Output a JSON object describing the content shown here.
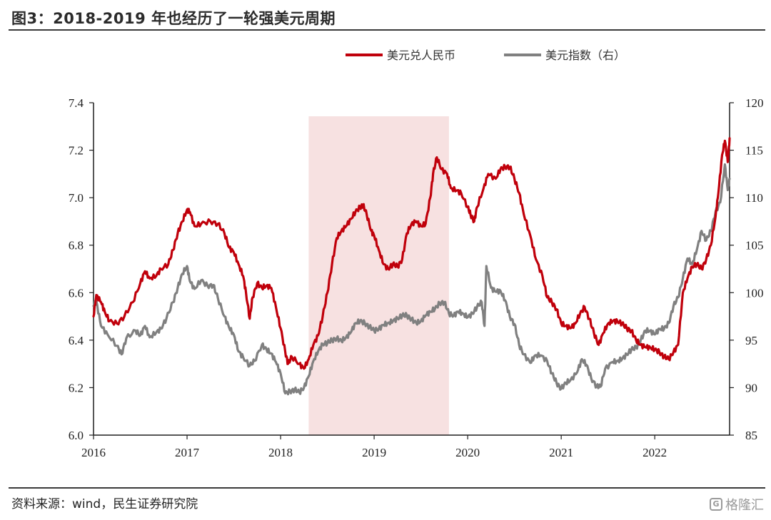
{
  "header": {
    "title": "图3：2018-2019 年也经历了一轮强美元周期"
  },
  "footer": {
    "source": "资料来源：wind，民生证券研究院",
    "watermark": "格隆汇"
  },
  "colors": {
    "cny": "#c0000b",
    "dxy": "#808080",
    "shade": "#f7e1e1",
    "axis": "#1f1f1f"
  },
  "chart_data": {
    "type": "line",
    "title": "",
    "xlabel": "",
    "ylabel": "",
    "x_ticks": [
      "2016",
      "2017",
      "2018",
      "2019",
      "2020",
      "2021",
      "2022"
    ],
    "x_range": [
      2016.0,
      2022.8
    ],
    "y_left": {
      "ticks": [
        "6.0",
        "6.2",
        "6.4",
        "6.6",
        "6.8",
        "7.0",
        "7.2",
        "7.4"
      ],
      "range": [
        6.0,
        7.4
      ]
    },
    "y_right": {
      "ticks": [
        "85",
        "90",
        "95",
        "100",
        "105",
        "110",
        "115",
        "120"
      ],
      "range": [
        85,
        120
      ],
      "label_suffix": "(右)"
    },
    "legend": {
      "placement": "top-right"
    },
    "shaded_period": {
      "start": 2018.3,
      "end": 2019.8
    },
    "series": [
      {
        "name": "美元兑人民币",
        "axis": "left",
        "points": [
          [
            2016.0,
            6.5
          ],
          [
            2016.03,
            6.59
          ],
          [
            2016.08,
            6.56
          ],
          [
            2016.12,
            6.52
          ],
          [
            2016.17,
            6.48
          ],
          [
            2016.25,
            6.47
          ],
          [
            2016.33,
            6.5
          ],
          [
            2016.42,
            6.56
          ],
          [
            2016.5,
            6.64
          ],
          [
            2016.55,
            6.69
          ],
          [
            2016.6,
            6.66
          ],
          [
            2016.67,
            6.67
          ],
          [
            2016.72,
            6.7
          ],
          [
            2016.8,
            6.72
          ],
          [
            2016.85,
            6.78
          ],
          [
            2016.9,
            6.85
          ],
          [
            2016.95,
            6.9
          ],
          [
            2017.0,
            6.95
          ],
          [
            2017.03,
            6.94
          ],
          [
            2017.08,
            6.88
          ],
          [
            2017.15,
            6.89
          ],
          [
            2017.25,
            6.9
          ],
          [
            2017.33,
            6.89
          ],
          [
            2017.4,
            6.85
          ],
          [
            2017.45,
            6.79
          ],
          [
            2017.5,
            6.77
          ],
          [
            2017.55,
            6.72
          ],
          [
            2017.6,
            6.67
          ],
          [
            2017.63,
            6.6
          ],
          [
            2017.67,
            6.49
          ],
          [
            2017.7,
            6.58
          ],
          [
            2017.75,
            6.64
          ],
          [
            2017.8,
            6.62
          ],
          [
            2017.85,
            6.63
          ],
          [
            2017.9,
            6.62
          ],
          [
            2017.95,
            6.54
          ],
          [
            2018.0,
            6.45
          ],
          [
            2018.05,
            6.35
          ],
          [
            2018.08,
            6.3
          ],
          [
            2018.12,
            6.33
          ],
          [
            2018.2,
            6.3
          ],
          [
            2018.25,
            6.28
          ],
          [
            2018.3,
            6.32
          ],
          [
            2018.35,
            6.38
          ],
          [
            2018.4,
            6.42
          ],
          [
            2018.45,
            6.5
          ],
          [
            2018.5,
            6.6
          ],
          [
            2018.55,
            6.72
          ],
          [
            2018.6,
            6.83
          ],
          [
            2018.65,
            6.86
          ],
          [
            2018.7,
            6.88
          ],
          [
            2018.75,
            6.91
          ],
          [
            2018.8,
            6.94
          ],
          [
            2018.85,
            6.96
          ],
          [
            2018.88,
            6.97
          ],
          [
            2018.92,
            6.93
          ],
          [
            2018.97,
            6.86
          ],
          [
            2019.0,
            6.84
          ],
          [
            2019.05,
            6.78
          ],
          [
            2019.1,
            6.72
          ],
          [
            2019.15,
            6.7
          ],
          [
            2019.2,
            6.72
          ],
          [
            2019.25,
            6.71
          ],
          [
            2019.3,
            6.74
          ],
          [
            2019.35,
            6.85
          ],
          [
            2019.4,
            6.89
          ],
          [
            2019.45,
            6.9
          ],
          [
            2019.5,
            6.88
          ],
          [
            2019.55,
            6.89
          ],
          [
            2019.6,
            7.0
          ],
          [
            2019.63,
            7.1
          ],
          [
            2019.67,
            7.17
          ],
          [
            2019.72,
            7.12
          ],
          [
            2019.78,
            7.1
          ],
          [
            2019.82,
            7.04
          ],
          [
            2019.88,
            7.03
          ],
          [
            2019.93,
            7.02
          ],
          [
            2020.0,
            6.96
          ],
          [
            2020.03,
            6.93
          ],
          [
            2020.07,
            6.9
          ],
          [
            2020.1,
            6.96
          ],
          [
            2020.17,
            7.04
          ],
          [
            2020.22,
            7.1
          ],
          [
            2020.3,
            7.08
          ],
          [
            2020.35,
            7.12
          ],
          [
            2020.4,
            7.13
          ],
          [
            2020.45,
            7.13
          ],
          [
            2020.5,
            7.08
          ],
          [
            2020.55,
            7.02
          ],
          [
            2020.6,
            6.93
          ],
          [
            2020.67,
            6.84
          ],
          [
            2020.73,
            6.74
          ],
          [
            2020.8,
            6.67
          ],
          [
            2020.85,
            6.58
          ],
          [
            2020.9,
            6.56
          ],
          [
            2020.95,
            6.53
          ],
          [
            2021.0,
            6.47
          ],
          [
            2021.05,
            6.46
          ],
          [
            2021.1,
            6.45
          ],
          [
            2021.15,
            6.47
          ],
          [
            2021.2,
            6.51
          ],
          [
            2021.25,
            6.54
          ],
          [
            2021.3,
            6.49
          ],
          [
            2021.35,
            6.43
          ],
          [
            2021.4,
            6.38
          ],
          [
            2021.45,
            6.43
          ],
          [
            2021.5,
            6.47
          ],
          [
            2021.55,
            6.48
          ],
          [
            2021.6,
            6.48
          ],
          [
            2021.65,
            6.47
          ],
          [
            2021.7,
            6.45
          ],
          [
            2021.75,
            6.44
          ],
          [
            2021.8,
            6.4
          ],
          [
            2021.85,
            6.38
          ],
          [
            2021.9,
            6.37
          ],
          [
            2021.95,
            6.37
          ],
          [
            2022.0,
            6.36
          ],
          [
            2022.05,
            6.35
          ],
          [
            2022.1,
            6.33
          ],
          [
            2022.15,
            6.32
          ],
          [
            2022.2,
            6.35
          ],
          [
            2022.25,
            6.38
          ],
          [
            2022.3,
            6.6
          ],
          [
            2022.35,
            6.66
          ],
          [
            2022.4,
            6.71
          ],
          [
            2022.45,
            6.72
          ],
          [
            2022.5,
            6.7
          ],
          [
            2022.55,
            6.74
          ],
          [
            2022.6,
            6.8
          ],
          [
            2022.65,
            6.92
          ],
          [
            2022.68,
            7.02
          ],
          [
            2022.72,
            7.18
          ],
          [
            2022.75,
            7.24
          ],
          [
            2022.78,
            7.15
          ],
          [
            2022.8,
            7.25
          ]
        ]
      },
      {
        "name": "美元指数（右）",
        "axis": "right",
        "points": [
          [
            2016.0,
            98.6
          ],
          [
            2016.03,
            99.1
          ],
          [
            2016.08,
            96.5
          ],
          [
            2016.15,
            95.6
          ],
          [
            2016.25,
            94.4
          ],
          [
            2016.3,
            93.5
          ],
          [
            2016.35,
            95.2
          ],
          [
            2016.45,
            96.0
          ],
          [
            2016.5,
            95.5
          ],
          [
            2016.55,
            96.5
          ],
          [
            2016.6,
            95.3
          ],
          [
            2016.67,
            95.8
          ],
          [
            2016.72,
            96.2
          ],
          [
            2016.78,
            97.3
          ],
          [
            2016.85,
            99.0
          ],
          [
            2016.9,
            100.5
          ],
          [
            2016.95,
            102.0
          ],
          [
            2017.0,
            102.8
          ],
          [
            2017.03,
            101.2
          ],
          [
            2017.08,
            100.4
          ],
          [
            2017.15,
            101.3
          ],
          [
            2017.22,
            100.7
          ],
          [
            2017.28,
            100.8
          ],
          [
            2017.33,
            99.4
          ],
          [
            2017.4,
            97.5
          ],
          [
            2017.45,
            96.3
          ],
          [
            2017.5,
            95.6
          ],
          [
            2017.55,
            93.8
          ],
          [
            2017.6,
            93.2
          ],
          [
            2017.67,
            92.3
          ],
          [
            2017.72,
            92.8
          ],
          [
            2017.8,
            94.5
          ],
          [
            2017.85,
            94.0
          ],
          [
            2017.9,
            93.6
          ],
          [
            2017.95,
            92.7
          ],
          [
            2018.0,
            91.5
          ],
          [
            2018.05,
            89.4
          ],
          [
            2018.1,
            89.6
          ],
          [
            2018.15,
            89.8
          ],
          [
            2018.2,
            89.5
          ],
          [
            2018.25,
            90.0
          ],
          [
            2018.3,
            91.2
          ],
          [
            2018.35,
            92.8
          ],
          [
            2018.4,
            93.8
          ],
          [
            2018.45,
            94.6
          ],
          [
            2018.5,
            94.7
          ],
          [
            2018.55,
            95.0
          ],
          [
            2018.6,
            95.2
          ],
          [
            2018.65,
            94.9
          ],
          [
            2018.7,
            95.3
          ],
          [
            2018.75,
            95.8
          ],
          [
            2018.8,
            96.8
          ],
          [
            2018.85,
            97.0
          ],
          [
            2018.9,
            96.8
          ],
          [
            2018.95,
            96.4
          ],
          [
            2019.0,
            96.0
          ],
          [
            2019.05,
            96.2
          ],
          [
            2019.1,
            96.6
          ],
          [
            2019.15,
            96.8
          ],
          [
            2019.2,
            97.0
          ],
          [
            2019.25,
            97.3
          ],
          [
            2019.3,
            97.6
          ],
          [
            2019.35,
            97.6
          ],
          [
            2019.4,
            97.2
          ],
          [
            2019.45,
            96.8
          ],
          [
            2019.5,
            97.0
          ],
          [
            2019.55,
            97.6
          ],
          [
            2019.6,
            98.0
          ],
          [
            2019.65,
            98.3
          ],
          [
            2019.7,
            98.9
          ],
          [
            2019.75,
            99.0
          ],
          [
            2019.8,
            97.8
          ],
          [
            2019.85,
            97.6
          ],
          [
            2019.9,
            98.0
          ],
          [
            2019.95,
            97.8
          ],
          [
            2020.0,
            97.4
          ],
          [
            2020.05,
            97.8
          ],
          [
            2020.1,
            98.5
          ],
          [
            2020.15,
            99.0
          ],
          [
            2020.18,
            96.5
          ],
          [
            2020.2,
            102.8
          ],
          [
            2020.25,
            100.5
          ],
          [
            2020.3,
            100.1
          ],
          [
            2020.35,
            100.2
          ],
          [
            2020.4,
            99.2
          ],
          [
            2020.45,
            97.5
          ],
          [
            2020.5,
            96.7
          ],
          [
            2020.55,
            94.5
          ],
          [
            2020.6,
            93.5
          ],
          [
            2020.67,
            92.6
          ],
          [
            2020.72,
            93.4
          ],
          [
            2020.78,
            93.4
          ],
          [
            2020.85,
            92.8
          ],
          [
            2020.9,
            91.5
          ],
          [
            2020.95,
            90.5
          ],
          [
            2021.0,
            89.9
          ],
          [
            2021.05,
            90.5
          ],
          [
            2021.1,
            90.8
          ],
          [
            2021.17,
            91.6
          ],
          [
            2021.22,
            93.0
          ],
          [
            2021.27,
            92.4
          ],
          [
            2021.32,
            91.0
          ],
          [
            2021.38,
            90.1
          ],
          [
            2021.42,
            90.1
          ],
          [
            2021.47,
            92.0
          ],
          [
            2021.55,
            92.7
          ],
          [
            2021.6,
            92.8
          ],
          [
            2021.65,
            93.0
          ],
          [
            2021.7,
            93.5
          ],
          [
            2021.75,
            94.0
          ],
          [
            2021.8,
            94.2
          ],
          [
            2021.85,
            95.0
          ],
          [
            2021.9,
            96.0
          ],
          [
            2021.95,
            96.0
          ],
          [
            2022.0,
            95.6
          ],
          [
            2022.05,
            96.2
          ],
          [
            2022.1,
            96.2
          ],
          [
            2022.15,
            96.8
          ],
          [
            2022.2,
            98.6
          ],
          [
            2022.25,
            99.5
          ],
          [
            2022.3,
            101.5
          ],
          [
            2022.35,
            103.6
          ],
          [
            2022.4,
            103.0
          ],
          [
            2022.45,
            104.5
          ],
          [
            2022.5,
            106.5
          ],
          [
            2022.55,
            105.5
          ],
          [
            2022.6,
            106.5
          ],
          [
            2022.65,
            108.5
          ],
          [
            2022.7,
            109.5
          ],
          [
            2022.75,
            113.5
          ],
          [
            2022.78,
            110.8
          ],
          [
            2022.8,
            112.0
          ]
        ]
      }
    ]
  }
}
